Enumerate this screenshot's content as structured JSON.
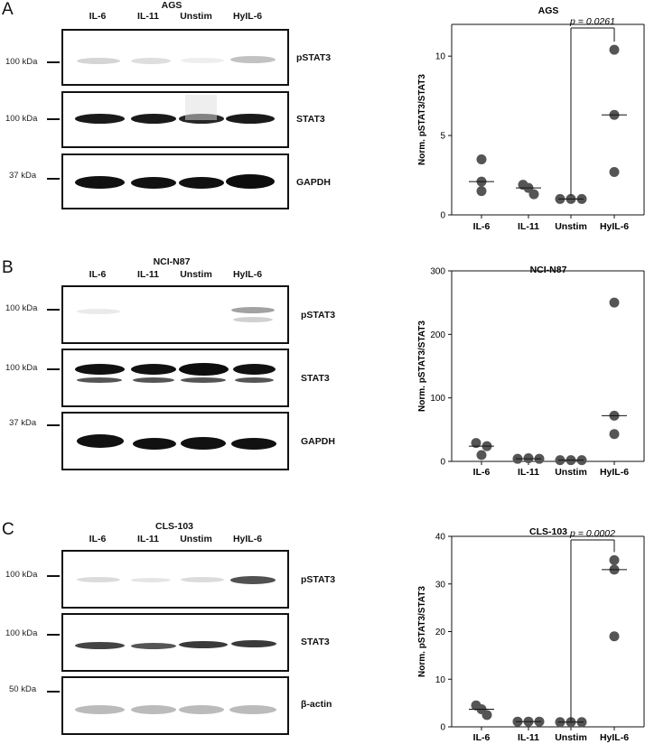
{
  "panels": [
    {
      "letter": "A",
      "cell_line": "AGS",
      "lanes": [
        "IL-6",
        "IL-11",
        "Unstim",
        "HyIL-6"
      ],
      "blots": [
        {
          "protein": "pSTAT3",
          "mw": "100 kDa",
          "intensity": [
            0.35,
            0.28,
            0.15,
            0.55
          ]
        },
        {
          "protein": "STAT3",
          "mw": "100 kDa",
          "intensity": [
            0.95,
            0.95,
            0.85,
            0.95
          ]
        },
        {
          "protein": "GAPDH",
          "mw": "37 kDa",
          "intensity": [
            0.95,
            0.95,
            0.95,
            0.97
          ]
        }
      ]
    },
    {
      "letter": "B",
      "cell_line": "NCI-N87",
      "lanes": [
        "IL-6",
        "IL-11",
        "Unstim",
        "HyIL-6"
      ],
      "blots": [
        {
          "protein": "pSTAT3",
          "mw": "100 kDa",
          "intensity": [
            0.12,
            0.05,
            0.05,
            0.55
          ]
        },
        {
          "protein": "STAT3",
          "mw": "100 kDa",
          "intensity": [
            0.95,
            0.95,
            0.97,
            0.95
          ]
        },
        {
          "protein": "GAPDH",
          "mw": "37 kDa",
          "intensity": [
            0.97,
            0.97,
            0.97,
            0.97
          ]
        }
      ]
    },
    {
      "letter": "C",
      "cell_line": "CLS-103",
      "lanes": [
        "IL-6",
        "IL-11",
        "Unstim",
        "HyIL-6"
      ],
      "blots": [
        {
          "protein": "pSTAT3",
          "mw": "100 kDa",
          "intensity": [
            0.2,
            0.15,
            0.22,
            0.75
          ]
        },
        {
          "protein": "STAT3",
          "mw": "100 kDa",
          "intensity": [
            0.65,
            0.62,
            0.72,
            0.72
          ]
        },
        {
          "protein": "β-actin",
          "mw": "50 kDa",
          "intensity": [
            0.3,
            0.3,
            0.3,
            0.3
          ]
        }
      ]
    }
  ],
  "chart_data": [
    {
      "type": "scatter",
      "title": "AGS",
      "categories": [
        "IL-6",
        "IL-11",
        "Unstim",
        "HyIL-6"
      ],
      "ylabel": "Norm. pSTAT3/STAT3",
      "ylim": [
        0,
        12
      ],
      "yticks": [
        0,
        5,
        10
      ],
      "points": [
        [
          3.5,
          2.1,
          1.5
        ],
        [
          1.9,
          1.7,
          1.3
        ],
        [
          1.0,
          1.0,
          1.0
        ],
        [
          10.4,
          6.3,
          2.7
        ]
      ],
      "medians": [
        2.1,
        1.7,
        1.0,
        6.3
      ],
      "annotation": {
        "text": "p = 0.0261",
        "from": "Unstim",
        "to": "HyIL-6"
      }
    },
    {
      "type": "scatter",
      "title": "NCI-N87",
      "categories": [
        "IL-6",
        "IL-11",
        "Unstim",
        "HyIL-6"
      ],
      "ylabel": "Norm. pSTAT3/STAT3",
      "ylim": [
        0,
        300
      ],
      "yticks": [
        0,
        100,
        200,
        300
      ],
      "points": [
        [
          29,
          24,
          10
        ],
        [
          4,
          5,
          4
        ],
        [
          2,
          2,
          2
        ],
        [
          250,
          72,
          43
        ]
      ],
      "medians": [
        24,
        4,
        2,
        72
      ],
      "annotation": null
    },
    {
      "type": "scatter",
      "title": "CLS-103",
      "categories": [
        "IL-6",
        "IL-11",
        "Unstim",
        "HyIL-6"
      ],
      "ylabel": "Norm. pSTAT3/STAT3",
      "ylim": [
        0,
        40
      ],
      "yticks": [
        0,
        10,
        20,
        30,
        40
      ],
      "points": [
        [
          4.5,
          3.7,
          2.5
        ],
        [
          1.1,
          1.1,
          1.1
        ],
        [
          1.0,
          1.0,
          1.0
        ],
        [
          35,
          33,
          19
        ]
      ],
      "medians": [
        3.7,
        1.1,
        1.0,
        33
      ],
      "annotation": {
        "text": "p = 0.0002",
        "from": "Unstim",
        "to": "HyIL-6"
      }
    }
  ]
}
